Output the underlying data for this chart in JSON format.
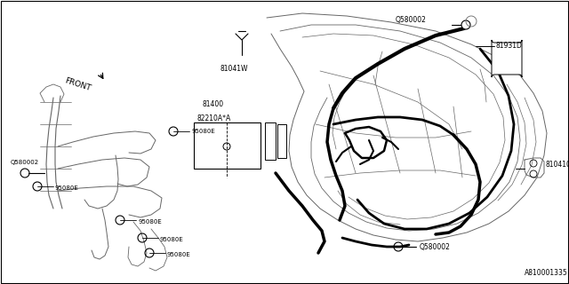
{
  "bg_color": "#ffffff",
  "lc": "#000000",
  "tlc": "#666666",
  "watermark": "A810001335",
  "figsize": [
    6.4,
    3.2
  ],
  "dpi": 100,
  "xlim": [
    0,
    640
  ],
  "ylim": [
    0,
    320
  ]
}
